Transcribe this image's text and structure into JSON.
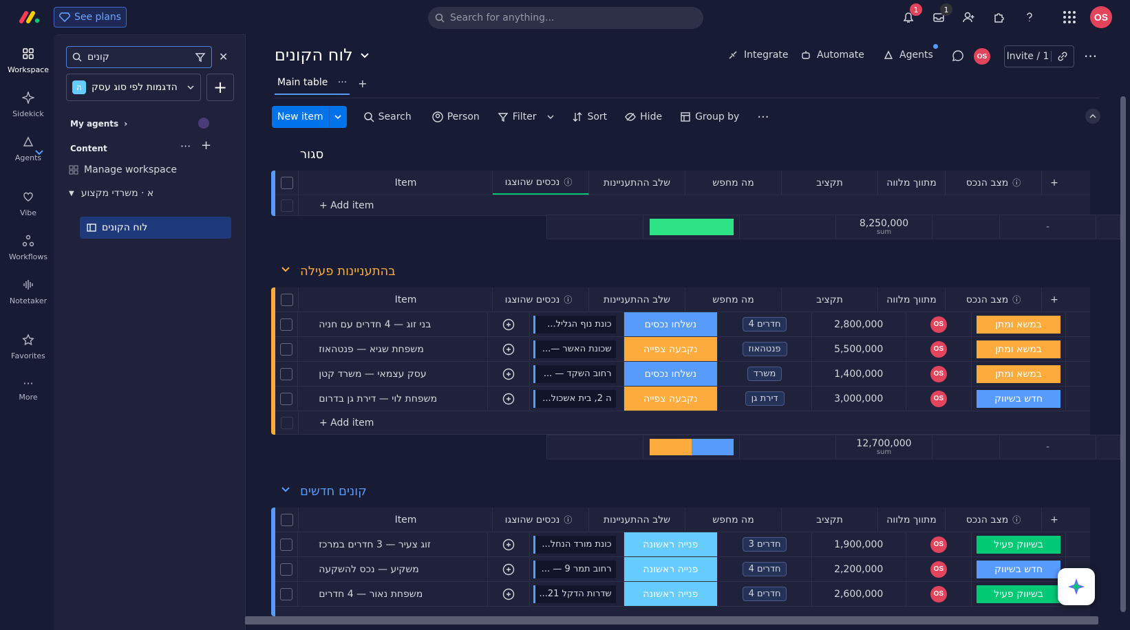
{
  "topbar": {
    "see_plans": "See plans",
    "search_placeholder": "Search for anything...",
    "notifications_count": "1",
    "inbox_count": "1",
    "avatar_initials": "OS"
  },
  "rail": [
    {
      "label": "Workspace",
      "icon": "grid-icon"
    },
    {
      "label": "Sidekick",
      "icon": "sparkle-icon"
    },
    {
      "label": "Agents",
      "icon": "agent-icon"
    },
    {
      "label": "Vibe",
      "icon": "heart-icon"
    },
    {
      "label": "Workflows",
      "icon": "workflow-icon"
    },
    {
      "label": "Notetaker",
      "icon": "waveform-icon"
    },
    {
      "label": "Favorites",
      "icon": "star-icon"
    },
    {
      "label": "More",
      "icon": "more-icon"
    }
  ],
  "sidebar": {
    "search_value": "קונים",
    "workspace_name": "הדגמות לפי סוג עסק",
    "workspace_letter": "ה",
    "my_agents": "My agents",
    "content": "Content",
    "manage_workspace": "Manage workspace",
    "folder": "א · משרדי מקצוע",
    "board_link": "לוח הקונים"
  },
  "board": {
    "title": "לוח הקונים",
    "integrate": "Integrate",
    "automate": "Automate",
    "agents": "Agents",
    "invite": "Invite / 1",
    "tab_main": "Main table",
    "toolbar": {
      "new_item": "New item",
      "search": "Search",
      "person": "Person",
      "filter": "Filter",
      "sort": "Sort",
      "hide": "Hide",
      "group_by": "Group by"
    }
  },
  "columns": {
    "item": "Item",
    "assets": "נכסים שהוצגו",
    "stage": "שלב ההתעניינות",
    "looking": "מה מחפש",
    "budget": "תקציב",
    "broker": "מתווך מלווה",
    "status": "מצב הנכס"
  },
  "add_item": "+ Add item",
  "sum_label": "sum",
  "dash": "-",
  "groups": [
    {
      "title": "סגור",
      "color": "#579bfc",
      "rows": [],
      "summary_budget": "8,250,000"
    },
    {
      "title": "בהתעניינות פעילה",
      "color": "#fdab3d",
      "summary_budget": "12,700,000",
      "rows": [
        {
          "item": "בני זוג — 4 חדרים עם חניה",
          "assets": "...כונת נוף הגליל",
          "stage": "נשלחו נכסים",
          "stage_color": "#579bfc",
          "looking": "4 חדרים",
          "budget": "2,800,000",
          "status": "במשא ומתן",
          "status_color": "#fdab3d"
        },
        {
          "item": "משפחת שגיא — פנטהאוז",
          "assets": "...— שכונת האשר",
          "stage": "נקבעה צפייה",
          "stage_color": "#fdab3d",
          "looking": "פנטהאוז",
          "budget": "5,500,000",
          "status": "במשא ומתן",
          "status_color": "#fdab3d"
        },
        {
          "item": "עסק עצמאי — משרד קטן",
          "assets": "... — רחוב השקד",
          "stage": "נשלחו נכסים",
          "stage_color": "#579bfc",
          "looking": "משרד",
          "budget": "1,400,000",
          "status": "במשא ומתן",
          "status_color": "#fdab3d"
        },
        {
          "item": "משפחת לוי — דירת גן בדרום",
          "assets": "...ה 2, בית אשכול",
          "stage": "נקבעה צפייה",
          "stage_color": "#fdab3d",
          "looking": "דירת גן",
          "budget": "3,000,000",
          "status": "חדש בשיווק",
          "status_color": "#579bfc"
        }
      ]
    },
    {
      "title": "קונים חדשים",
      "color": "#579bfc",
      "rows": [
        {
          "item": "זוג צעיר — 3 חדרים במרכז",
          "assets": "...כונת מורד הנחל",
          "stage": "פנייה ראשונה",
          "stage_color": "#66ccff",
          "looking": "3 חדרים",
          "budget": "1,900,000",
          "status": "בשיווק פעיל",
          "status_color": "#00c875"
        },
        {
          "item": "משקיע — נכס להשקעה",
          "assets": "... — רחוב תמר 9",
          "stage": "פנייה ראשונה",
          "stage_color": "#66ccff",
          "looking": "4 חדרים",
          "budget": "2,200,000",
          "status": "חדש בשיווק",
          "status_color": "#579bfc"
        },
        {
          "item": "משפחת נאור — 4 חדרים",
          "assets": "...שדרות הדקל 21",
          "stage": "פנייה ראשונה",
          "stage_color": "#66ccff",
          "looking": "4 חדרים",
          "budget": "2,600,000",
          "status": "בשיווק פעיל",
          "status_color": "#00c875"
        }
      ]
    }
  ]
}
